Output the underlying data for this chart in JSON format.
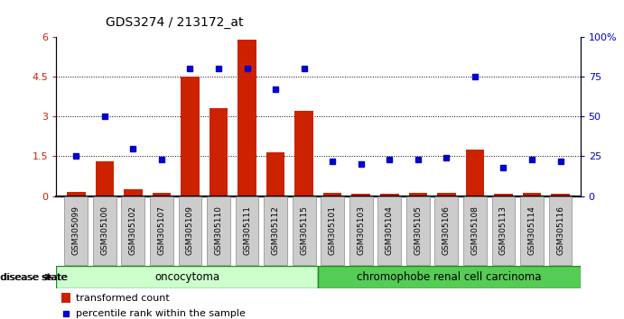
{
  "title": "GDS3274 / 213172_at",
  "samples": [
    "GSM305099",
    "GSM305100",
    "GSM305102",
    "GSM305107",
    "GSM305109",
    "GSM305110",
    "GSM305111",
    "GSM305112",
    "GSM305115",
    "GSM305101",
    "GSM305103",
    "GSM305104",
    "GSM305105",
    "GSM305106",
    "GSM305108",
    "GSM305113",
    "GSM305114",
    "GSM305116"
  ],
  "bar_values": [
    0.15,
    1.3,
    0.25,
    0.12,
    4.5,
    3.3,
    5.9,
    1.65,
    3.2,
    0.12,
    0.08,
    0.1,
    0.12,
    0.12,
    1.75,
    0.08,
    0.12,
    0.1
  ],
  "dot_values": [
    25,
    50,
    30,
    23,
    80,
    80,
    80,
    67,
    80,
    22,
    20,
    23,
    23,
    24,
    75,
    18,
    23,
    22
  ],
  "group1_label": "oncocytoma",
  "group1_count": 9,
  "group2_label": "chromophobe renal cell carcinoma",
  "group2_count": 9,
  "bar_color": "#cc2200",
  "dot_color": "#0000cc",
  "bar_ylim": [
    0,
    6
  ],
  "dot_ylim": [
    0,
    100
  ],
  "bar_yticks": [
    0,
    1.5,
    3.0,
    4.5,
    6.0
  ],
  "bar_yticklabels": [
    "0",
    "1.5",
    "3",
    "4.5",
    "6"
  ],
  "dot_yticks": [
    0,
    25,
    50,
    75,
    100
  ],
  "dot_yticklabels": [
    "0",
    "25",
    "50",
    "75",
    "100%"
  ],
  "grid_lines": [
    1.5,
    3.0,
    4.5
  ],
  "legend_bar_label": "transformed count",
  "legend_dot_label": "percentile rank within the sample",
  "disease_state_label": "disease state",
  "group1_color": "#ccffcc",
  "group2_color": "#55cc55",
  "tick_bg_color": "#cccccc",
  "label_color_left": "#cc2200",
  "label_color_right": "#0000cc",
  "bg_color": "#ffffff"
}
